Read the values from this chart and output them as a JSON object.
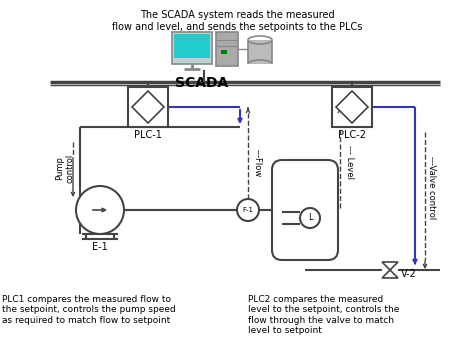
{
  "title_text": "The SCADA system reads the measured\nflow and level, and sends the setpoints to the PLCs",
  "scada_label": "SCADA",
  "plc1_label": "PLC-1",
  "plc2_label": "PLC-2",
  "e1_label": "E-1",
  "v2_label": "V-2",
  "f1_label": "F-1",
  "flow_label": "---Flow",
  "level_label": "--- Level",
  "pump_control_label": "Pump\ncontrol",
  "valve_control_label": "---Valve control",
  "plc1_desc": "PLC1 compares the measured flow to\nthe setpoint, controls the pump speed\nas required to match flow to setpoint",
  "plc2_desc": "PLC2 compares the measured\nlevel to the setpoint, controls the\nflow through the valve to match\nlevel to setpoint",
  "bg_color": "#ffffff",
  "line_color": "#444444",
  "blue_color": "#3333bb",
  "gray_color": "#888888",
  "cyan_color": "#22cccc",
  "dark_gray": "#555555"
}
